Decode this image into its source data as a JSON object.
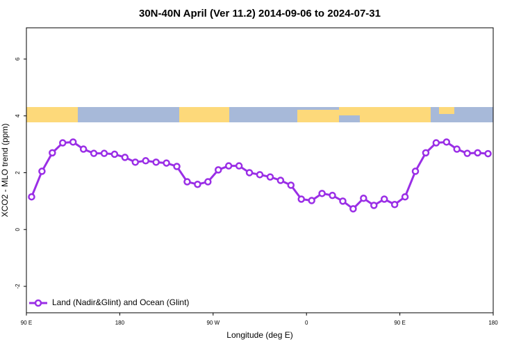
{
  "chart_data": {
    "type": "line",
    "title": "30N-40N April (Ver 11.2)   2014-09-06 to 2024-07-31",
    "x_label": "Longitude (deg E)",
    "y_label": "XCO2 - MLO trend (ppm)",
    "x": [
      95,
      105,
      115,
      125,
      135,
      145,
      155,
      165,
      175,
      185,
      195,
      205,
      215,
      225,
      235,
      245,
      255,
      265,
      275,
      285,
      295,
      305,
      315,
      325,
      335,
      345,
      355,
      365,
      375,
      385,
      395,
      405,
      415,
      425,
      435,
      445,
      455,
      465,
      475,
      485,
      495,
      505,
      515,
      525,
      535
    ],
    "series": [
      {
        "name": "Land (Nadir&Glint) and Ocean (Glint)",
        "color": "#9a2ee6",
        "values": [
          1.15,
          2.05,
          2.7,
          3.05,
          3.08,
          2.83,
          2.68,
          2.68,
          2.65,
          2.54,
          2.37,
          2.42,
          2.37,
          2.34,
          2.22,
          1.68,
          1.59,
          1.68,
          2.1,
          2.24,
          2.24,
          2.0,
          1.93,
          1.85,
          1.73,
          1.56,
          1.07,
          1.02,
          1.27,
          1.2,
          1.0,
          0.73,
          1.1,
          0.85,
          1.07,
          0.88,
          1.15,
          2.05,
          2.7,
          3.05,
          3.08,
          2.83,
          2.68,
          2.7,
          2.67
        ]
      }
    ],
    "xlim": [
      90,
      540
    ],
    "xticks": [
      {
        "value": 90,
        "label": "90 E"
      },
      180,
      {
        "value": 270,
        "label": "90 W"
      },
      {
        "value": 360,
        "label": "0"
      },
      {
        "value": 450,
        "label": "90 E"
      },
      {
        "value": 540,
        "label": "180"
      }
    ],
    "ylim": [
      -2.93,
      7.1
    ],
    "yticks": [
      -2,
      0,
      2,
      4,
      6
    ],
    "legend": "lower left"
  }
}
